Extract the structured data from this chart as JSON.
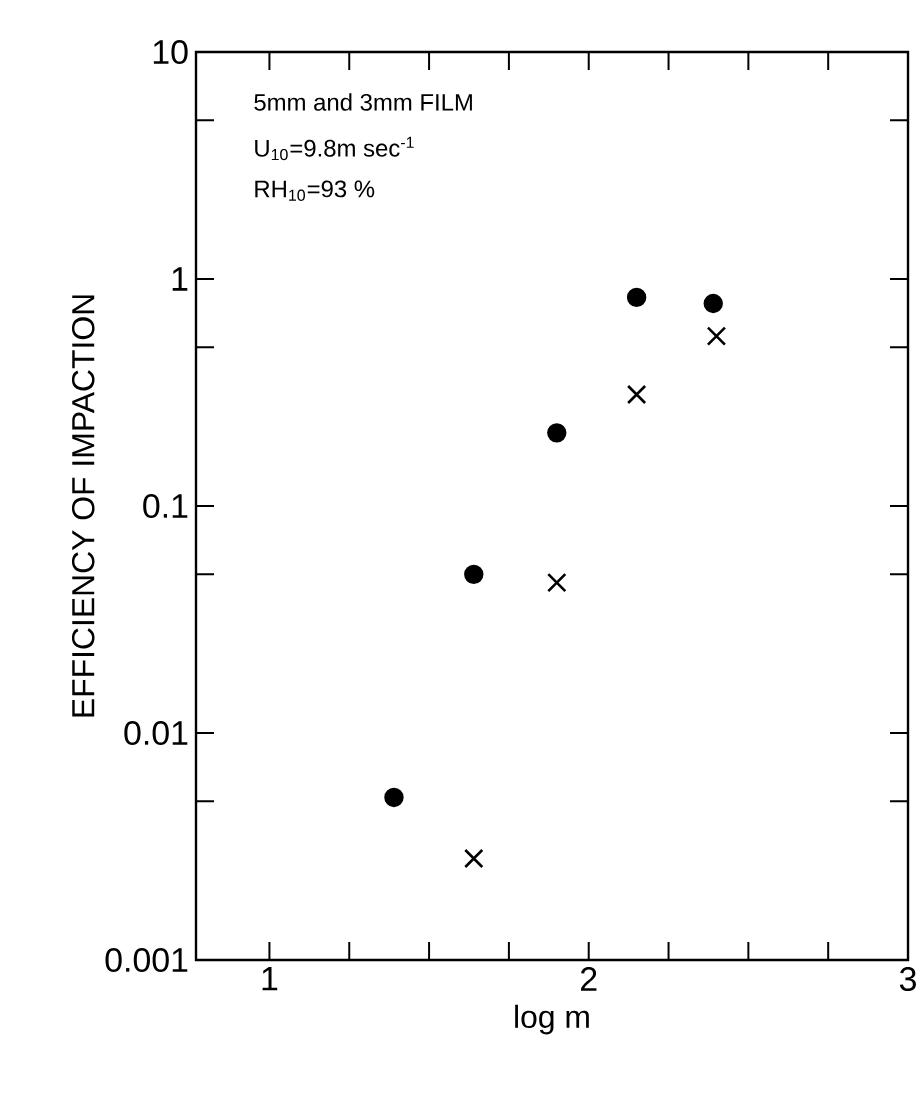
{
  "chart_data": {
    "type": "scatter",
    "xlabel": "log m",
    "ylabel": "EFFICIENCY OF IMPACTION",
    "log": "y",
    "annotations": [
      "5mm and 3mm FILM",
      "U$_{10}$=9.8m sec$^{-1}$",
      "RH$_{10}$=93 %"
    ],
    "xlim": [
      0.77,
      3
    ],
    "ylim": [
      0.001,
      10
    ],
    "xticks": [
      1,
      {
        "value": 1.25,
        "label": null
      },
      {
        "value": 1.5,
        "label": null
      },
      {
        "value": 1.75,
        "label": null
      },
      2,
      {
        "value": 2.25,
        "label": null
      },
      {
        "value": 2.5,
        "label": null
      },
      {
        "value": 2.75,
        "label": null
      },
      3
    ],
    "yticks": [
      0.001,
      {
        "value": 0.005,
        "label": null
      },
      0.01,
      {
        "value": 0.05,
        "label": null
      },
      0.1,
      {
        "value": 0.5,
        "label": null
      },
      1,
      {
        "value": 5,
        "label": null
      },
      10
    ],
    "series": [
      {
        "color": "#000000",
        "marker": "circle",
        "x": [
          1.39,
          1.64,
          1.9,
          2.15,
          2.39
        ],
        "values": [
          0.0052,
          0.05,
          0.21,
          0.83,
          0.78
        ]
      },
      {
        "color": "#000000",
        "marker": "cross",
        "x": [
          1.64,
          1.9,
          2.15,
          2.4
        ],
        "values": [
          0.0028,
          0.046,
          0.31,
          0.56
        ]
      }
    ]
  }
}
